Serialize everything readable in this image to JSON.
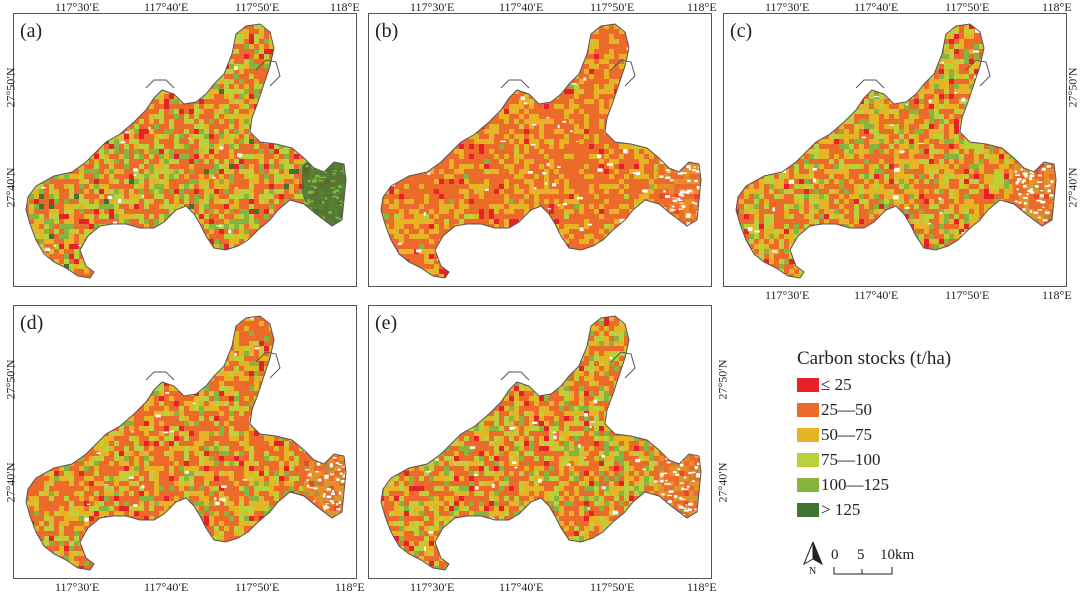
{
  "panels": [
    {
      "label": "(a)"
    },
    {
      "label": "(b)"
    },
    {
      "label": "(c)"
    },
    {
      "label": "(d)"
    },
    {
      "label": "(e)"
    }
  ],
  "axes": {
    "lon_labels": [
      "117°30′E",
      "117°40′E",
      "117°50′E",
      "118°E"
    ],
    "lat_labels": [
      "27°50′N",
      "27°40′N"
    ]
  },
  "legend": {
    "title": "Carbon stocks (t/ha)",
    "classes": [
      {
        "label": "≤ 25",
        "color": "#e8202a"
      },
      {
        "label": "25—50",
        "color": "#ec6a2a"
      },
      {
        "label": "50—75",
        "color": "#e6b525"
      },
      {
        "label": "75—100",
        "color": "#bcd03b"
      },
      {
        "label": "100—125",
        "color": "#86b43e"
      },
      {
        "label": "> 125",
        "color": "#3f7432"
      }
    ]
  },
  "north_arrow": {
    "label": "N"
  },
  "scale_bar": {
    "labels": [
      "0",
      "5",
      "10km"
    ]
  }
}
